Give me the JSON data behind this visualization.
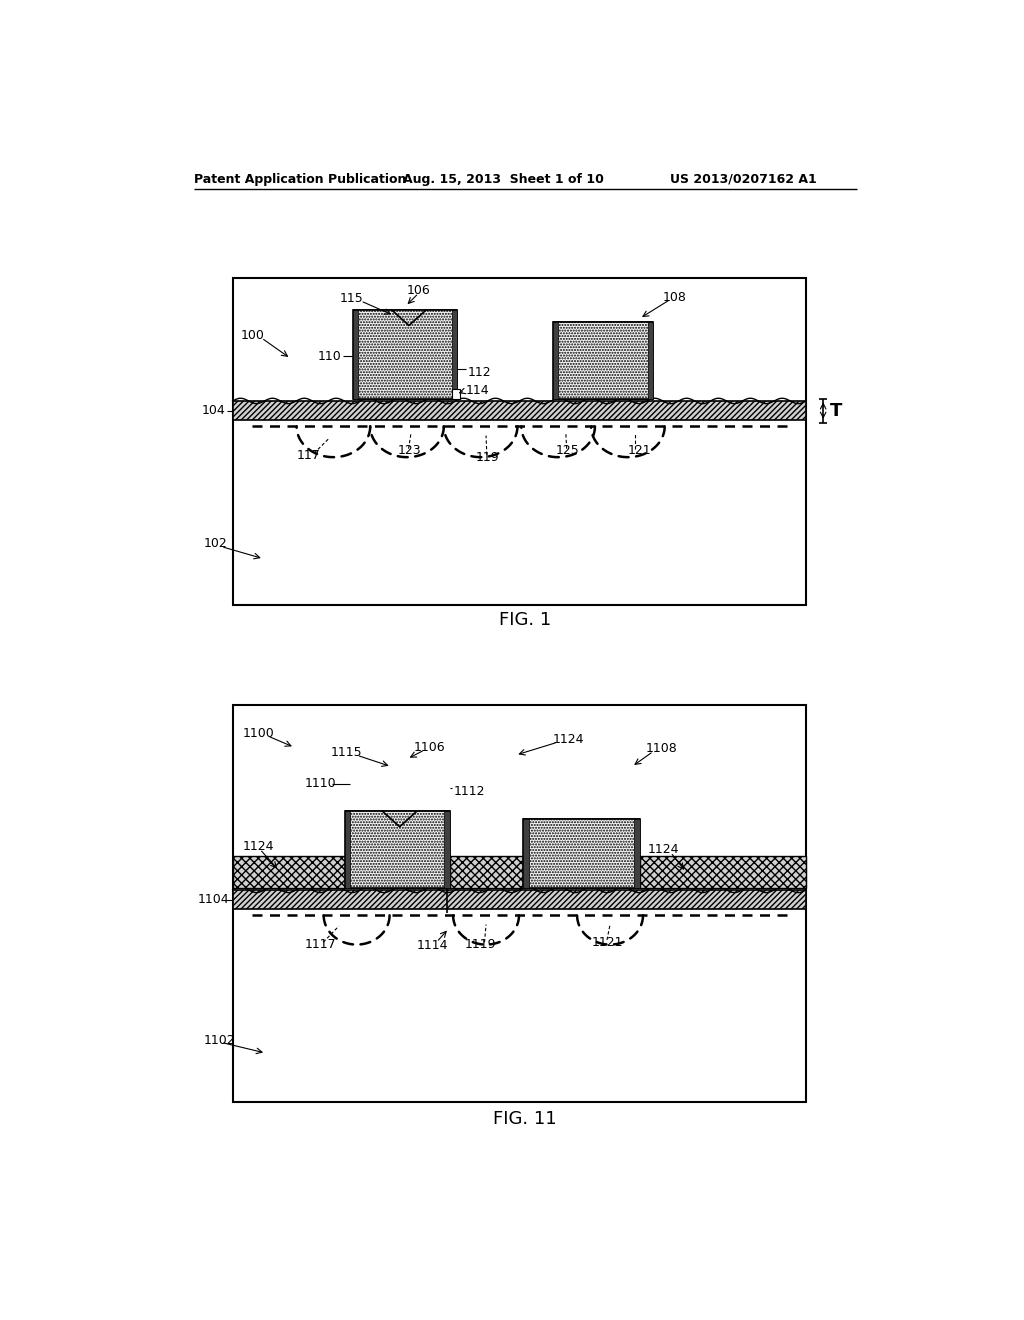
{
  "background_color": "#ffffff",
  "header_line1": "Patent Application Publication",
  "header_line2": "Aug. 15, 2013  Sheet 1 of 10",
  "header_line3": "US 2013/0207162 A1",
  "fig1_label": "FIG. 1",
  "fig11_label": "FIG. 11"
}
